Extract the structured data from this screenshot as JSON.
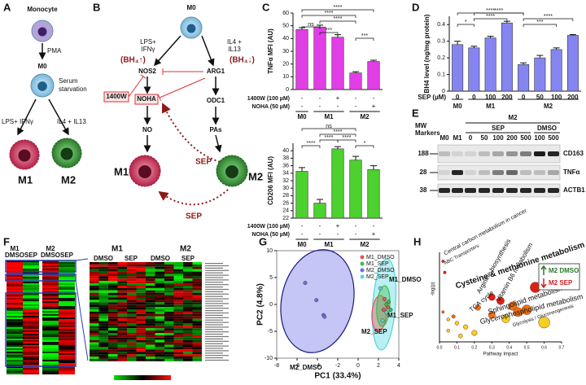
{
  "panel_labels": [
    "A",
    "B",
    "C",
    "D",
    "E",
    "F",
    "G",
    "H"
  ],
  "panel_a": {
    "monocyte": "Monocyte",
    "pma": "PMA",
    "m0": "M0",
    "serum": [
      "Serum",
      "starvation"
    ],
    "lps": "LPS+ IFNγ",
    "il4": "IL4 + IL13",
    "m1": "M1",
    "m2": "M2"
  },
  "panel_b": {
    "m0": "M0",
    "lps": [
      "LPS+",
      "IFNγ"
    ],
    "il4": [
      "IL4 +",
      "IL13"
    ],
    "bh4_up": "(BH₄↑)",
    "bh4_down": "(BH₄↓)",
    "nos2": "NOS2",
    "arg1": "ARG1",
    "w1400": "1400W",
    "noha": "NOHA",
    "odc1": "ODC1",
    "no": "NO",
    "pas": "PAs",
    "sep": "SEP",
    "m1": "M1",
    "m2": "M2"
  },
  "chart_data": [
    {
      "type": "bar",
      "ylabel": "TNFα MFI (AU)",
      "color": "#e23ee6",
      "values": [
        47,
        49,
        41,
        13,
        22
      ],
      "errors": [
        1.5,
        1.5,
        2,
        1,
        1
      ],
      "ylim": [
        0,
        60
      ],
      "yticks": [
        0,
        10,
        20,
        30,
        40,
        50,
        60
      ],
      "treatments": [
        {
          "name": "1400W (100 µM)",
          "signs": [
            "-",
            "-",
            "+",
            "-",
            "-"
          ]
        },
        {
          "name": "NOHA (50 µM)",
          "signs": [
            "-",
            "-",
            "-",
            "-",
            "+"
          ]
        }
      ],
      "groups": [
        "M0",
        "M1",
        "M2"
      ],
      "annotations": [
        "ns",
        "****",
        "****",
        "***",
        "****",
        "***"
      ]
    },
    {
      "type": "bar",
      "ylabel": "CD206 MFI (AU)",
      "color": "#4cd12e",
      "values": [
        34.5,
        26,
        40.5,
        37.5,
        35
      ],
      "errors": [
        1,
        1,
        0.6,
        1,
        1
      ],
      "ylim": [
        22,
        42
      ],
      "yticks": [
        22,
        24,
        26,
        28,
        30,
        32,
        34,
        36,
        38,
        40
      ],
      "treatments": [
        {
          "name": "1400W (100 µM)",
          "signs": [
            "-",
            "-",
            "+",
            "-",
            "-"
          ]
        },
        {
          "name": "NOHA (50 µM)",
          "signs": [
            "-",
            "-",
            "-",
            "-",
            "+"
          ]
        }
      ],
      "groups": [
        "M0",
        "M1",
        "M2"
      ],
      "annotations": [
        "ns",
        "****",
        "****",
        "****",
        "****",
        "*"
      ]
    },
    {
      "type": "bar",
      "ylabel": "BH4 level (ng/mg protein)",
      "xlabel": "SEP (µM)",
      "color": "#8585f2",
      "categories": [
        "0",
        "0",
        "100",
        "200",
        "0",
        "50",
        "100",
        "200"
      ],
      "values": [
        0.28,
        0.26,
        0.32,
        0.41,
        0.16,
        0.2,
        0.25,
        0.335
      ],
      "errors": [
        0.02,
        0.01,
        0.01,
        0.01,
        0.01,
        0.015,
        0.01,
        0.005
      ],
      "ylim": [
        0,
        0.45
      ],
      "yticks": [
        0,
        0.1,
        0.2,
        0.3,
        0.4
      ],
      "groups": [
        "M0",
        "M1",
        "M2"
      ],
      "annotations": [
        "*",
        "****",
        "****",
        "****",
        "***",
        "****"
      ]
    },
    {
      "type": "scatter",
      "xlabel": "PC1 (33.4%)",
      "ylabel": "PC2 (4.8%)",
      "xlim": [
        -8,
        4
      ],
      "xticks": [
        -8,
        -6,
        -4,
        -2,
        0,
        2,
        4
      ],
      "ylim": [
        -10,
        10
      ],
      "yticks": [
        -10,
        -5,
        0,
        5,
        10
      ],
      "series": [
        {
          "name": "M1_DMSO",
          "color": "#e8525a",
          "x": [
            2.6,
            2.9,
            2.5
          ],
          "values": [
            1,
            -0.5,
            -1
          ]
        },
        {
          "name": "M1_SEP",
          "color": "#3bbf4a",
          "x": [
            3.0,
            3.2,
            2.8
          ],
          "values": [
            0.5,
            -1,
            0
          ]
        },
        {
          "name": "M2_DMSO",
          "color": "#6e6ee8",
          "x": [
            -5.2,
            -4.1,
            -3.4,
            -3.3
          ],
          "values": [
            4,
            0.8,
            -2,
            -2.3
          ]
        },
        {
          "name": "M2_SEP",
          "color": "#52d6e0",
          "x": [
            2.2,
            2.8,
            2.4
          ],
          "values": [
            3,
            -1.5,
            -3
          ]
        }
      ],
      "annotations": [
        "M1_DMSO",
        "M1_SEP",
        "M2_SEP",
        "M2_DMSO"
      ]
    },
    {
      "type": "scatter",
      "xlabel": "Pathway Impact",
      "ylabel": "-log(p)",
      "xlim": [
        0,
        0.7
      ],
      "xticks": [
        {
          "value": 0,
          "label": "0.0"
        },
        0.1,
        0.2,
        0.3,
        0.4,
        0.5,
        0.6,
        0.7
      ],
      "ylim": [
        0,
        12
      ],
      "x": [
        0.02,
        0.03,
        0.55,
        0.3,
        0.35,
        0.42,
        0.22,
        0.5,
        0.45,
        0.3,
        0.38,
        0.6,
        0.02,
        0.05,
        0.1,
        0.15,
        0.05,
        0.2,
        0.12,
        0.08
      ],
      "values": [
        10.8,
        9.3,
        7.3,
        6.0,
        5.5,
        4.8,
        4.6,
        4.3,
        4.0,
        3.6,
        3.1,
        2.6,
        4.0,
        3.0,
        2.5,
        2.0,
        1.5,
        1.2,
        0.8,
        3.4
      ],
      "pathways": [
        "Central carbon metabolism in cancer",
        "ABC Transporters",
        "Cysteine & methionine metabolism",
        "Arginine biosynthesis",
        "Vitamin B6 metabolism",
        "TCA cycle",
        "Sphingolipid metabolism",
        "Glycerophospholipid metabolism",
        "Glycolysis / Gluconeogenesis"
      ],
      "legend": [
        "M2 DMSO",
        "M2 SEP"
      ]
    }
  ],
  "blot": {
    "mw": [
      "MW",
      "Markers"
    ],
    "m0": "M0",
    "m1": "M1",
    "m2": "M2",
    "sep": "SEP",
    "dmso": "DMSO",
    "lanes": [
      "0",
      "50",
      "100",
      "200",
      "500",
      "100",
      "500"
    ],
    "markers": [
      "188",
      "28",
      "38"
    ],
    "proteins": [
      "CD163",
      "TNFα",
      "ACTB1"
    ]
  },
  "heatmap": {
    "groups": [
      "M1",
      "M2"
    ],
    "conditions": [
      "DMSO",
      "SEP",
      "DMSO",
      "SEP"
    ]
  }
}
